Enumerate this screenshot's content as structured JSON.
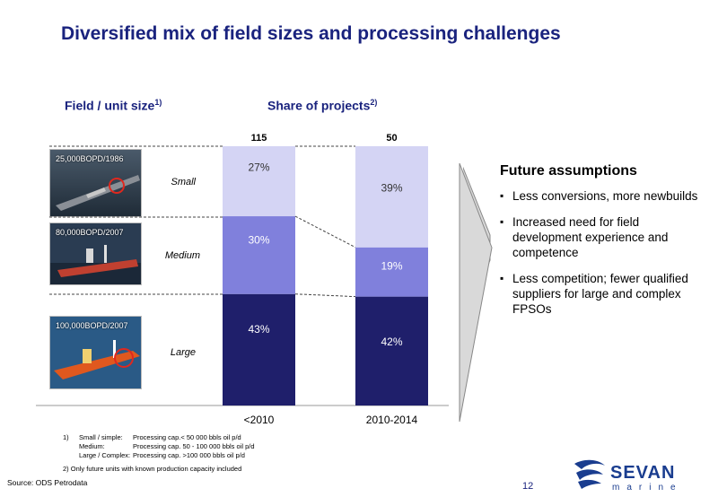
{
  "title": "Diversified mix of field sizes and processing challenges",
  "headers": {
    "field": "Field / unit size",
    "field_sup": "1)",
    "share": "Share of projects",
    "share_sup": "2)"
  },
  "rows": [
    {
      "label": "Small",
      "photo_caption": "25,000BOPD/1986"
    },
    {
      "label": "Medium",
      "photo_caption": "80,000BOPD/2007"
    },
    {
      "label": "Large",
      "photo_caption": "100,000BOPD/2007"
    }
  ],
  "chart_data": {
    "type": "bar",
    "stacked": true,
    "normalized": true,
    "categories": [
      "<2010",
      "2010-2014"
    ],
    "totals": [
      "115",
      "50"
    ],
    "series": [
      {
        "name": "Large",
        "values": [
          43,
          42
        ],
        "labels": [
          "43%",
          "42%"
        ],
        "color": "#1f1f6b"
      },
      {
        "name": "Medium",
        "values": [
          30,
          19
        ],
        "labels": [
          "30%",
          "19%"
        ],
        "color": "#8080dc"
      },
      {
        "name": "Small",
        "values": [
          27,
          39
        ],
        "labels": [
          "27%",
          "39%"
        ],
        "color": "#d4d4f4"
      }
    ]
  },
  "future": {
    "title": "Future assumptions",
    "items": [
      "Less conversions, more newbuilds",
      "Increased need for field development experience and competence",
      "Less competition; fewer qualified suppliers for large and complex FPSOs"
    ]
  },
  "footnotes": {
    "n1_num": "1)",
    "n1_l1a": "Small / simple:",
    "n1_l1b": "Processing cap.< 50 000 bbls oil p/d",
    "n1_l2a": "Medium:",
    "n1_l2b": "Processing cap. 50 - 100 000 bbls oil p/d",
    "n1_l3a": "Large / Complex:",
    "n1_l3b": "Processing cap. >100 000 bbls oil p/d",
    "n2": "2)   Only future units with known production capacity included"
  },
  "source": "Source: ODS Petrodata",
  "page_number": "12",
  "logo": {
    "name": "SEVAN",
    "sub": "marine"
  }
}
